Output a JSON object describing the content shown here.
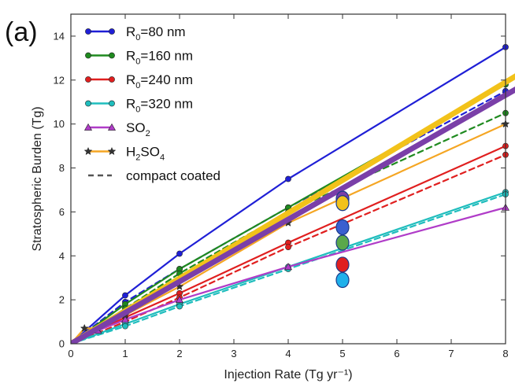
{
  "panel_label": "(a)",
  "chart_data": {
    "type": "line",
    "xlabel": "Injection Rate (Tg yr⁻¹)",
    "ylabel": "Stratospheric Burden (Tg)",
    "xlim": [
      0,
      8
    ],
    "ylim": [
      0,
      15
    ],
    "xticks": [
      "0",
      "1",
      "2",
      "3",
      "4",
      "5",
      "6",
      "7",
      "8"
    ],
    "yticks": [
      "0",
      "2",
      "4",
      "6",
      "8",
      "10",
      "12",
      "14"
    ],
    "grid": false,
    "legend_position": "top-left",
    "colors": {
      "r80": "#1f1fd6",
      "r160": "#1f8a1f",
      "r240": "#e01f1f",
      "r320": "#1fbdbd",
      "so2": "#b03cc8",
      "h2so4": "#f5a623",
      "thick_yellow": "#f2c21a",
      "thick_purple": "#7a3fa8"
    },
    "series": [
      {
        "key": "r80",
        "name": "R₀=80 nm",
        "name_main": "R",
        "name_sub": "0",
        "name_rest": "=80 nm",
        "marker": "circle",
        "x": [
          0,
          1,
          2,
          4,
          8
        ],
        "y": [
          0,
          2.2,
          4.1,
          7.5,
          13.5
        ]
      },
      {
        "key": "r80d",
        "marker": "circle",
        "dashed": true,
        "color_key": "r80",
        "x": [
          0,
          1,
          2,
          4,
          8
        ],
        "y": [
          0,
          1.9,
          3.4,
          6.2,
          11.5
        ]
      },
      {
        "key": "r160",
        "name": "R₀=160 nm",
        "name_main": "R",
        "name_sub": "0",
        "name_rest": "=160 nm",
        "marker": "circle",
        "x": [
          0,
          1,
          2,
          4,
          8
        ],
        "y": [
          0,
          1.8,
          3.4,
          6.2,
          11.8
        ]
      },
      {
        "key": "r160d",
        "marker": "circle",
        "dashed": true,
        "color_key": "r160",
        "x": [
          0,
          1,
          2,
          4,
          8
        ],
        "y": [
          0,
          1.6,
          3.2,
          6.0,
          10.5
        ]
      },
      {
        "key": "r240",
        "name": "R₀=240 nm",
        "name_main": "R",
        "name_sub": "0",
        "name_rest": "=240 nm",
        "marker": "circle",
        "x": [
          0,
          1,
          2,
          4,
          8
        ],
        "y": [
          0,
          1.2,
          2.3,
          4.6,
          9.0
        ]
      },
      {
        "key": "r240d",
        "marker": "circle",
        "dashed": true,
        "color_key": "r240",
        "x": [
          0,
          1,
          2,
          4,
          8
        ],
        "y": [
          0,
          1.0,
          2.1,
          4.4,
          8.6
        ]
      },
      {
        "key": "r320",
        "name": "R₀=320 nm",
        "name_main": "R",
        "name_sub": "0",
        "name_rest": "=320 nm",
        "marker": "circle",
        "x": [
          0,
          1,
          2,
          4,
          8
        ],
        "y": [
          0,
          0.9,
          1.8,
          3.5,
          6.9
        ]
      },
      {
        "key": "r320d",
        "marker": "circle",
        "dashed": true,
        "color_key": "r320",
        "x": [
          0,
          1,
          2,
          4,
          8
        ],
        "y": [
          0,
          0.8,
          1.7,
          3.4,
          6.8
        ]
      },
      {
        "key": "so2",
        "name": "SO₂",
        "name_main": "SO",
        "name_sub": "2",
        "name_rest": "",
        "marker": "triangle",
        "x": [
          0,
          0.5,
          1,
          2,
          4,
          8
        ],
        "y": [
          0,
          0.6,
          1.1,
          2.0,
          3.5,
          6.2
        ]
      },
      {
        "key": "h2so4",
        "name": "H₂SO₄",
        "name_main": "H",
        "name_sub": "2",
        "name_rest": "SO",
        "name_sub2": "4",
        "marker": "star",
        "x": [
          0,
          0.25,
          0.5,
          1,
          2,
          4,
          8
        ],
        "y": [
          0,
          0.7,
          0.7,
          1.3,
          2.6,
          5.5,
          10.0
        ]
      },
      {
        "key": "thick_yellow",
        "thick": true,
        "x": [
          0,
          8.2
        ],
        "y": [
          0,
          12.2
        ]
      },
      {
        "key": "thick_purple",
        "thick": true,
        "x": [
          0,
          8.2
        ],
        "y": [
          0,
          11.6
        ]
      }
    ],
    "legend_extra": {
      "label": "compact coated",
      "style": "dashed",
      "color": "#555555"
    },
    "scatter_points": [
      {
        "x": 5,
        "y": 6.6,
        "color": "#7a3fa8"
      },
      {
        "x": 5,
        "y": 6.4,
        "color": "#f2c21a"
      },
      {
        "x": 5,
        "y": 5.3,
        "color": "#3a5fd0"
      },
      {
        "x": 5,
        "y": 4.6,
        "color": "#5aa84a"
      },
      {
        "x": 5,
        "y": 3.6,
        "color": "#e01f1f"
      },
      {
        "x": 5,
        "y": 2.9,
        "color": "#1fb0ea"
      }
    ]
  }
}
